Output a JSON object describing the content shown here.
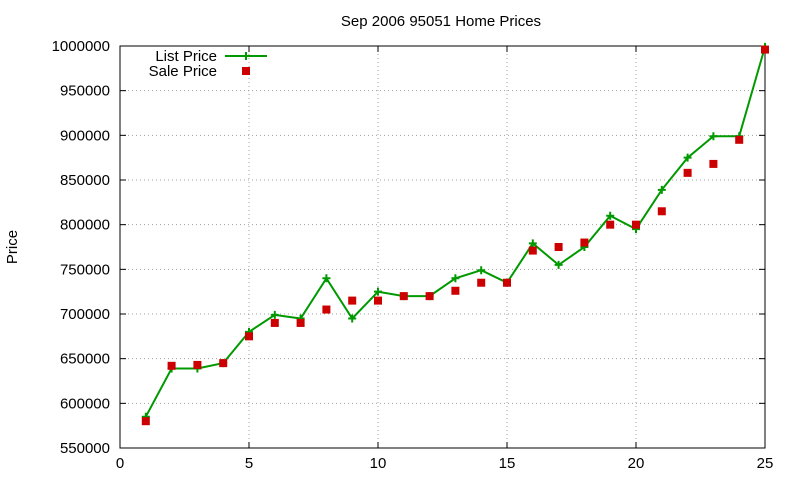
{
  "chart_data": {
    "type": "line",
    "title": "Sep 2006 95051 Home Prices",
    "xlabel": "",
    "ylabel": "Price",
    "xlim": [
      0,
      25
    ],
    "ylim": [
      550000,
      1000000
    ],
    "x_ticks": [
      0,
      5,
      10,
      15,
      20,
      25
    ],
    "y_ticks": [
      550000,
      600000,
      650000,
      700000,
      750000,
      800000,
      850000,
      900000,
      950000,
      1000000
    ],
    "grid": true,
    "legend_position": "top-left",
    "series": [
      {
        "name": "List Price",
        "style": "line-with-plus-markers",
        "color": "#009900",
        "points": [
          [
            1,
            585000
          ],
          [
            2,
            639000
          ],
          [
            3,
            639000
          ],
          [
            4,
            645000
          ],
          [
            5,
            680000
          ],
          [
            6,
            699000
          ],
          [
            7,
            695000
          ],
          [
            8,
            740000
          ],
          [
            9,
            695000
          ],
          [
            10,
            725000
          ],
          [
            11,
            720000
          ],
          [
            12,
            720000
          ],
          [
            13,
            740000
          ],
          [
            14,
            749000
          ],
          [
            15,
            735000
          ],
          [
            16,
            779000
          ],
          [
            17,
            755000
          ],
          [
            18,
            775000
          ],
          [
            19,
            810000
          ],
          [
            20,
            795000
          ],
          [
            21,
            839000
          ],
          [
            22,
            875000
          ],
          [
            23,
            899000
          ],
          [
            24,
            899000
          ],
          [
            25,
            999000
          ]
        ]
      },
      {
        "name": "Sale Price",
        "style": "square-markers",
        "color": "#cc0000",
        "points": [
          [
            1,
            580000
          ],
          [
            2,
            642000
          ],
          [
            3,
            643000
          ],
          [
            4,
            645000
          ],
          [
            5,
            675000
          ],
          [
            6,
            690000
          ],
          [
            7,
            690000
          ],
          [
            8,
            705000
          ],
          [
            9,
            715000
          ],
          [
            10,
            715000
          ],
          [
            11,
            720000
          ],
          [
            12,
            720000
          ],
          [
            13,
            726000
          ],
          [
            14,
            735000
          ],
          [
            15,
            735000
          ],
          [
            16,
            771000
          ],
          [
            17,
            775000
          ],
          [
            18,
            780000
          ],
          [
            19,
            800000
          ],
          [
            20,
            800000
          ],
          [
            21,
            815000
          ],
          [
            22,
            858000
          ],
          [
            23,
            868000
          ],
          [
            24,
            895000
          ],
          [
            25,
            996000
          ]
        ]
      }
    ]
  }
}
